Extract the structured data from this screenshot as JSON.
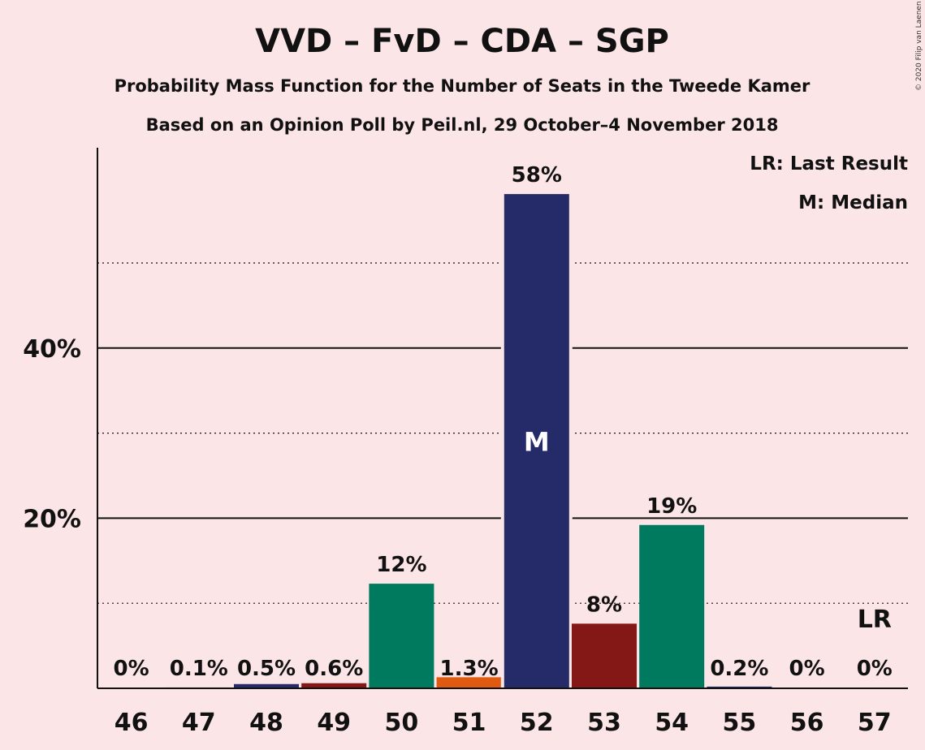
{
  "title": "VVD – FvD – CDA – SGP",
  "subtitle1": "Probability Mass Function for the Number of Seats in the Tweede Kamer",
  "subtitle2": "Based on an Opinion Poll by Peil.nl, 29 October–4 November 2018",
  "copyright": "© 2020 Filip van Laenen",
  "legend": {
    "lr": "LR: Last Result",
    "m": "M: Median"
  },
  "colors": {
    "background": "#fce5e6",
    "vvd": "#252b68",
    "fvd": "#841817",
    "cda": "#007a5e",
    "sgp": "#e05a12"
  },
  "chart_data": {
    "type": "bar",
    "categories": [
      "46",
      "47",
      "48",
      "49",
      "50",
      "51",
      "52",
      "53",
      "54",
      "55",
      "56",
      "57"
    ],
    "values": [
      0,
      0.1,
      0.5,
      0.6,
      12.3,
      1.3,
      58.1,
      7.6,
      19.2,
      0.2,
      0,
      0
    ],
    "value_labels": [
      "0%",
      "0.1%",
      "0.5%",
      "0.6%",
      "12%",
      "1.3%",
      "58%",
      "8%",
      "19%",
      "0.2%",
      "0%",
      "0%"
    ],
    "bar_colors": [
      "#252b68",
      "#252b68",
      "#252b68",
      "#841817",
      "#007a5e",
      "#e05a12",
      "#252b68",
      "#841817",
      "#007a5e",
      "#252b68",
      "#252b68",
      "#252b68"
    ],
    "y_ticks": [
      {
        "value": 20,
        "label": "20%"
      },
      {
        "value": 40,
        "label": "40%"
      }
    ],
    "gridlines_dotted": [
      10,
      30,
      50
    ],
    "ylim": [
      0,
      63
    ],
    "median": {
      "category": "52",
      "label": "M"
    },
    "last_result": {
      "category": "57",
      "label": "LR"
    }
  }
}
